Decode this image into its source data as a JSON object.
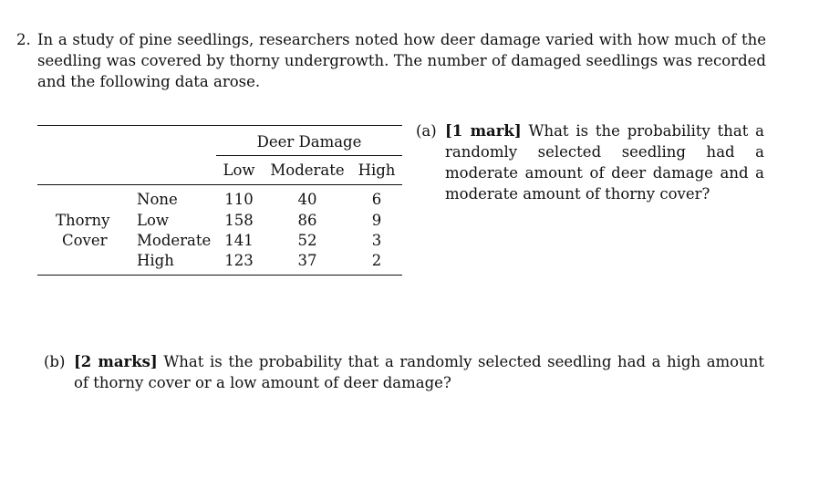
{
  "problem": {
    "number": "2.",
    "text": "In a study of pine seedlings, researchers noted how deer damage varied with how much of the seedling was covered by thorny undergrowth. The number of damaged seedlings was recorded and the following data arose."
  },
  "table": {
    "column_group": "Deer Damage",
    "columns": [
      "Low",
      "Moderate",
      "High"
    ],
    "row_group": [
      "Thorny",
      "Cover"
    ],
    "rows": [
      {
        "label": "None",
        "values": [
          "110",
          "40",
          "6"
        ]
      },
      {
        "label": "Low",
        "values": [
          "158",
          "86",
          "9"
        ]
      },
      {
        "label": "Moderate",
        "values": [
          "141",
          "52",
          "3"
        ]
      },
      {
        "label": "High",
        "values": [
          "123",
          "37",
          "2"
        ]
      }
    ]
  },
  "part_a": {
    "label": "(a)",
    "marks": "[1 mark]",
    "question": "What is the probability that a randomly selected seedling had a moderate amount of deer damage and a moderate amount of thorny cover?"
  },
  "part_b": {
    "label": "(b)",
    "marks": "[2 marks]",
    "question": "What is the probability that a randomly selected seedling had a high amount of thorny cover or a low amount of deer damage?"
  }
}
